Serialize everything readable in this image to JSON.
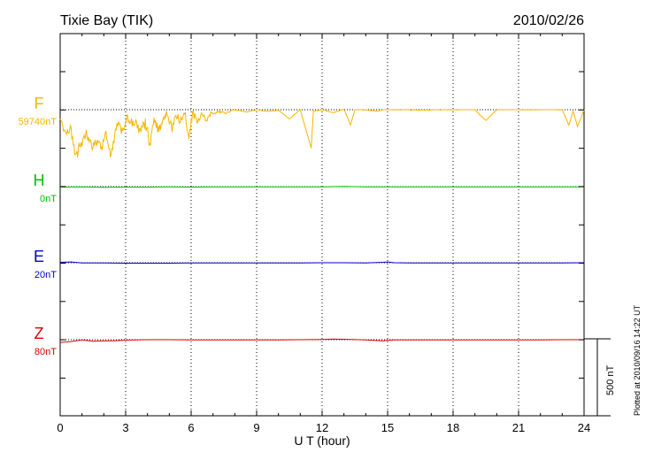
{
  "chart_data": {
    "type": "line",
    "title": "Tixie Bay (TIK)",
    "date": "2010/02/26",
    "xlabel": "U T (hour)",
    "xlim": [
      0,
      24
    ],
    "xticks": [
      "0",
      "3",
      "6",
      "9",
      "12",
      "15",
      "18",
      "21",
      "24"
    ],
    "scale_label": "500 nT",
    "plotted_note": "Plotted at 2010/09/16 14:22 UT",
    "series": [
      {
        "name": "F",
        "baseline_label": "59740nT",
        "color": "#f7b500",
        "x": [
          0.0,
          0.3,
          0.5,
          0.7,
          0.9,
          1.1,
          1.3,
          1.5,
          1.7,
          1.9,
          2.1,
          2.3,
          2.5,
          2.7,
          2.9,
          3.1,
          3.3,
          3.5,
          3.7,
          3.9,
          4.1,
          4.3,
          4.5,
          4.7,
          4.9,
          5.1,
          5.3,
          5.5,
          5.7,
          5.9,
          6.1,
          6.3,
          6.5,
          6.7,
          6.9,
          7.1,
          7.3,
          7.5,
          8.0,
          8.5,
          9.0,
          9.5,
          10.0,
          10.5,
          11.0,
          11.5,
          11.6,
          12.0,
          12.5,
          13.0,
          13.3,
          13.5,
          14.0,
          14.5,
          15.0,
          15.5,
          16.0,
          16.5,
          17.0,
          17.5,
          18.0,
          19.0,
          19.5,
          20.0,
          21.0,
          22.0,
          23.0,
          23.3,
          23.5,
          23.7,
          23.9,
          24.0
        ],
        "values": [
          -60,
          -170,
          -120,
          -290,
          -250,
          -170,
          -180,
          -260,
          -200,
          -240,
          -150,
          -310,
          -160,
          -100,
          -130,
          -60,
          -110,
          -90,
          -150,
          -70,
          -220,
          -60,
          -110,
          -80,
          -40,
          -120,
          -40,
          -90,
          -30,
          -200,
          -10,
          -90,
          -30,
          -70,
          -20,
          -30,
          -10,
          -20,
          0,
          -15,
          0,
          -10,
          -5,
          -60,
          0,
          -250,
          -10,
          0,
          -20,
          5,
          -100,
          0,
          0,
          -10,
          5,
          0,
          0,
          -5,
          0,
          0,
          0,
          0,
          -70,
          0,
          0,
          0,
          0,
          -100,
          -10,
          -110,
          -40,
          0
        ]
      },
      {
        "name": "H",
        "baseline_label": "0nT",
        "color": "#00c000",
        "x": [
          0,
          1,
          2,
          3,
          4,
          5,
          6,
          7,
          8,
          9,
          10,
          11,
          12,
          13,
          14,
          15,
          16,
          17,
          18,
          19,
          20,
          21,
          22,
          23,
          24
        ],
        "values": [
          -3,
          -2,
          -4,
          -3,
          -3,
          -2,
          -3,
          -2,
          -2,
          -2,
          -2,
          -1,
          -1,
          1,
          -1,
          -2,
          -2,
          -1,
          -1,
          -1,
          -1,
          -1,
          -1,
          -1,
          -1
        ]
      },
      {
        "name": "E",
        "baseline_label": "20nT",
        "color": "#0000cc",
        "x": [
          0,
          0.5,
          1,
          2,
          3,
          4,
          5,
          6,
          7,
          8,
          9,
          10,
          11,
          12,
          13,
          14,
          14.8,
          15,
          15.3,
          16,
          17,
          18,
          19,
          20,
          21,
          22,
          23,
          24
        ],
        "values": [
          3,
          5,
          -1,
          -2,
          -3,
          -3,
          -3,
          -2,
          -2,
          -2,
          -1,
          -1,
          -1,
          0,
          0,
          -1,
          3,
          5,
          0,
          -1,
          -1,
          -1,
          -1,
          -1,
          -1,
          -1,
          -1,
          0
        ]
      },
      {
        "name": "Z",
        "baseline_label": "80nT",
        "color": "#dd0000",
        "x": [
          0,
          0.5,
          1,
          1.5,
          2,
          2.5,
          3,
          4,
          5,
          6,
          7,
          8,
          9,
          10,
          11,
          12,
          12.5,
          13,
          14,
          14.8,
          15,
          15.3,
          16,
          17,
          18,
          19,
          20,
          21,
          22,
          23,
          24
        ],
        "values": [
          -18,
          -12,
          -2,
          -10,
          -8,
          -7,
          -3,
          0,
          0,
          -1,
          -1,
          -1,
          -1,
          -1,
          0,
          2,
          4,
          3,
          -2,
          -8,
          -4,
          -2,
          -1,
          -1,
          -1,
          -1,
          -1,
          -1,
          -1,
          0,
          0
        ]
      }
    ]
  }
}
